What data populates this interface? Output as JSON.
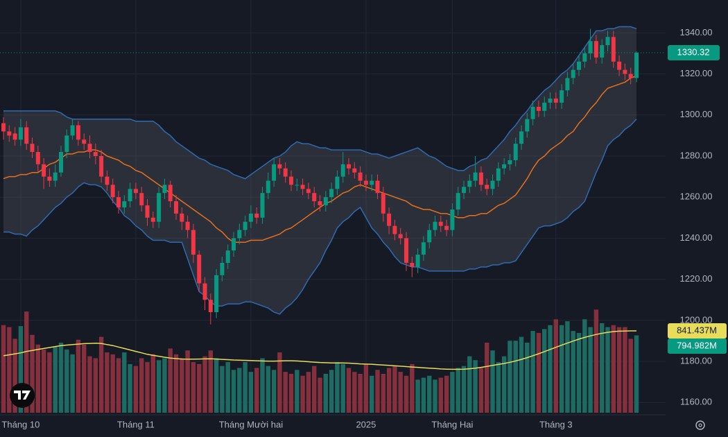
{
  "chart_data": {
    "type": "candlestick",
    "categories": [
      null,
      null,
      null,
      "Tháng 10",
      null,
      null,
      null,
      null,
      null,
      null,
      null,
      null,
      null,
      null,
      null,
      null,
      null,
      null,
      null,
      null,
      null,
      null,
      null,
      "Tháng 11",
      null,
      null,
      null,
      null,
      null,
      null,
      null,
      null,
      null,
      null,
      null,
      null,
      null,
      null,
      null,
      null,
      null,
      null,
      null,
      "Tháng Mười hai",
      null,
      null,
      null,
      null,
      null,
      null,
      null,
      null,
      null,
      null,
      null,
      null,
      null,
      null,
      null,
      null,
      null,
      null,
      null,
      "2025",
      null,
      null,
      null,
      null,
      null,
      null,
      null,
      null,
      null,
      null,
      null,
      null,
      null,
      null,
      "Tháng Hai",
      null,
      null,
      null,
      null,
      null,
      null,
      null,
      null,
      null,
      null,
      null,
      null,
      null,
      null,
      null,
      null,
      null,
      "Tháng 3",
      null,
      null,
      null,
      null,
      null,
      null,
      null,
      null,
      null,
      null,
      null,
      null,
      null,
      null
    ],
    "open": [
      1296,
      1292,
      1291,
      1288,
      1294,
      1286,
      1282,
      1276,
      1270,
      1268,
      1272,
      1282,
      1290,
      1295,
      1288,
      1286,
      1282,
      1280,
      1270,
      1266,
      1260,
      1255,
      1258,
      1264,
      1262,
      1256,
      1250,
      1248,
      1262,
      1266,
      1258,
      1252,
      1248,
      1244,
      1232,
      1218,
      1210,
      1204,
      1222,
      1228,
      1234,
      1240,
      1244,
      1248,
      1252,
      1250,
      1262,
      1268,
      1276,
      1274,
      1270,
      1266,
      1266,
      1264,
      1262,
      1258,
      1256,
      1260,
      1264,
      1270,
      1276,
      1274,
      1272,
      1268,
      1266,
      1268,
      1262,
      1252,
      1246,
      1242,
      1240,
      1228,
      1226,
      1232,
      1238,
      1244,
      1248,
      1246,
      1244,
      1254,
      1262,
      1265,
      1268,
      1272,
      1266,
      1264,
      1268,
      1274,
      1276,
      1278,
      1286,
      1292,
      1298,
      1304,
      1302,
      1306,
      1308,
      1306,
      1312,
      1318,
      1322,
      1326,
      1330,
      1336,
      1328,
      1334,
      1338,
      1326,
      1322,
      1320,
      1318
    ],
    "high": [
      1299,
      1295,
      1294,
      1298,
      1297,
      1289,
      1285,
      1279,
      1274,
      1276,
      1285,
      1293,
      1298,
      1297,
      1291,
      1290,
      1286,
      1283,
      1273,
      1269,
      1263,
      1261,
      1267,
      1267,
      1265,
      1259,
      1253,
      1265,
      1269,
      1268,
      1261,
      1255,
      1251,
      1247,
      1234,
      1221,
      1213,
      1225,
      1231,
      1237,
      1243,
      1247,
      1251,
      1256,
      1255,
      1265,
      1272,
      1279,
      1279,
      1277,
      1273,
      1269,
      1269,
      1267,
      1265,
      1261,
      1263,
      1267,
      1273,
      1282,
      1279,
      1277,
      1275,
      1271,
      1271,
      1271,
      1265,
      1255,
      1249,
      1245,
      1243,
      1231,
      1235,
      1241,
      1247,
      1251,
      1251,
      1249,
      1257,
      1265,
      1268,
      1271,
      1280,
      1275,
      1269,
      1271,
      1277,
      1279,
      1281,
      1289,
      1295,
      1301,
      1307,
      1307,
      1309,
      1311,
      1311,
      1315,
      1321,
      1325,
      1329,
      1333,
      1342,
      1339,
      1337,
      1341,
      1341,
      1329,
      1325,
      1323,
      1331
    ],
    "low": [
      1288,
      1287,
      1285,
      1285,
      1283,
      1279,
      1272,
      1264,
      1265,
      1265,
      1270,
      1279,
      1288,
      1285,
      1283,
      1279,
      1276,
      1267,
      1263,
      1257,
      1252,
      1252,
      1255,
      1259,
      1253,
      1246,
      1245,
      1245,
      1259,
      1255,
      1249,
      1244,
      1240,
      1228,
      1214,
      1205,
      1198,
      1201,
      1219,
      1225,
      1231,
      1237,
      1241,
      1245,
      1247,
      1247,
      1259,
      1265,
      1271,
      1267,
      1263,
      1263,
      1261,
      1259,
      1255,
      1253,
      1253,
      1257,
      1261,
      1267,
      1271,
      1269,
      1265,
      1263,
      1263,
      1259,
      1248,
      1242,
      1239,
      1237,
      1224,
      1221,
      1223,
      1229,
      1235,
      1241,
      1243,
      1241,
      1241,
      1251,
      1259,
      1262,
      1265,
      1263,
      1261,
      1261,
      1265,
      1271,
      1273,
      1275,
      1283,
      1289,
      1295,
      1299,
      1299,
      1303,
      1303,
      1303,
      1309,
      1315,
      1319,
      1323,
      1327,
      1325,
      1325,
      1331,
      1323,
      1319,
      1317,
      1315,
      1316
    ],
    "close": [
      1292,
      1290,
      1288,
      1294,
      1286,
      1282,
      1276,
      1270,
      1268,
      1272,
      1282,
      1290,
      1295,
      1288,
      1286,
      1282,
      1280,
      1270,
      1266,
      1260,
      1255,
      1258,
      1264,
      1262,
      1256,
      1250,
      1248,
      1262,
      1266,
      1258,
      1252,
      1248,
      1244,
      1232,
      1218,
      1210,
      1204,
      1222,
      1228,
      1234,
      1240,
      1244,
      1248,
      1252,
      1250,
      1262,
      1268,
      1276,
      1274,
      1270,
      1266,
      1266,
      1264,
      1262,
      1258,
      1256,
      1260,
      1264,
      1270,
      1276,
      1274,
      1272,
      1268,
      1266,
      1268,
      1262,
      1252,
      1246,
      1242,
      1240,
      1228,
      1226,
      1232,
      1238,
      1244,
      1248,
      1246,
      1244,
      1254,
      1262,
      1265,
      1268,
      1272,
      1266,
      1264,
      1268,
      1274,
      1276,
      1278,
      1286,
      1292,
      1298,
      1304,
      1302,
      1306,
      1308,
      1306,
      1312,
      1318,
      1322,
      1326,
      1330,
      1336,
      1328,
      1334,
      1338,
      1326,
      1322,
      1320,
      1318,
      1330.32
    ],
    "up_color": "#089981",
    "down_color": "#f23645",
    "ylim": [
      1154,
      1356
    ],
    "yticks": [
      {
        "value": 1340,
        "label": "1340.00"
      },
      {
        "value": 1320,
        "label": "1320.00"
      },
      {
        "value": 1300,
        "label": "1300.00"
      },
      {
        "value": 1280,
        "label": "1280.00"
      },
      {
        "value": 1260,
        "label": "1260.00"
      },
      {
        "value": 1240,
        "label": "1240.00"
      },
      {
        "value": 1220,
        "label": "1220.00"
      },
      {
        "value": 1200,
        "label": "1200.00"
      },
      {
        "value": 1180,
        "label": "1180.00"
      },
      {
        "value": 1160,
        "label": "1160.00"
      }
    ],
    "grid": true,
    "bands": {
      "upper": [
        1302,
        1302,
        1302,
        1302,
        1302,
        1302,
        1302,
        1302,
        1302,
        1302,
        1301,
        1299,
        1298,
        1298,
        1298,
        1298,
        1298,
        1298,
        1298,
        1298,
        1298,
        1298,
        1298,
        1297,
        1297,
        1297,
        1297,
        1295,
        1292,
        1290,
        1287,
        1285,
        1283,
        1281,
        1279,
        1278,
        1276,
        1275,
        1274,
        1273,
        1271,
        1270,
        1269,
        1271,
        1273,
        1275,
        1277,
        1279,
        1280,
        1282,
        1285,
        1287,
        1286,
        1286,
        1285,
        1284,
        1284,
        1283,
        1283,
        1283,
        1283,
        1283,
        1283,
        1282,
        1281,
        1281,
        1280,
        1279,
        1280,
        1281,
        1282,
        1283,
        1284,
        1282,
        1280,
        1279,
        1277,
        1275,
        1274,
        1273,
        1273,
        1275,
        1276,
        1278,
        1279,
        1282,
        1285,
        1288,
        1292,
        1295,
        1299,
        1302,
        1306,
        1309,
        1312,
        1314,
        1317,
        1320,
        1322,
        1325,
        1329,
        1333,
        1337,
        1341,
        1341,
        1342,
        1342,
        1343,
        1343,
        1343,
        1342
      ],
      "lower": [
        1243,
        1243,
        1242,
        1242,
        1241,
        1244,
        1246,
        1249,
        1252,
        1255,
        1257,
        1260,
        1262,
        1265,
        1267,
        1266,
        1266,
        1265,
        1262,
        1258,
        1255,
        1251,
        1249,
        1246,
        1244,
        1241,
        1239,
        1239,
        1239,
        1238,
        1238,
        1238,
        1230,
        1222,
        1214,
        1212,
        1209,
        1207,
        1207,
        1208,
        1208,
        1208,
        1209,
        1209,
        1208,
        1207,
        1206,
        1204,
        1203,
        1206,
        1208,
        1211,
        1215,
        1220,
        1224,
        1228,
        1234,
        1239,
        1245,
        1248,
        1250,
        1253,
        1255,
        1250,
        1245,
        1242,
        1238,
        1235,
        1231,
        1228,
        1227,
        1226,
        1226,
        1225,
        1224,
        1224,
        1224,
        1224,
        1224,
        1224,
        1224,
        1225,
        1225,
        1226,
        1226,
        1227,
        1227,
        1228,
        1228,
        1229,
        1233,
        1237,
        1241,
        1245,
        1246,
        1246,
        1247,
        1248,
        1250,
        1253,
        1255,
        1258,
        1265,
        1272,
        1278,
        1285,
        1288,
        1290,
        1293,
        1295,
        1298
      ],
      "basis": [
        1269,
        1270,
        1270,
        1271,
        1271,
        1272,
        1272,
        1274,
        1276,
        1277,
        1279,
        1281,
        1281,
        1282,
        1282,
        1283,
        1283,
        1282,
        1280,
        1279,
        1278,
        1276,
        1275,
        1273,
        1272,
        1270,
        1268,
        1266,
        1264,
        1262,
        1260,
        1258,
        1256,
        1254,
        1252,
        1250,
        1248,
        1245,
        1243,
        1240,
        1238,
        1238,
        1238,
        1239,
        1239,
        1239,
        1240,
        1241,
        1242,
        1244,
        1245,
        1247,
        1249,
        1251,
        1253,
        1255,
        1257,
        1258,
        1260,
        1262,
        1263,
        1265,
        1266,
        1265,
        1264,
        1263,
        1262,
        1261,
        1260,
        1259,
        1258,
        1256,
        1255,
        1254,
        1254,
        1253,
        1252,
        1252,
        1251,
        1250,
        1250,
        1251,
        1251,
        1252,
        1252,
        1254,
        1256,
        1257,
        1259,
        1261,
        1265,
        1269,
        1274,
        1278,
        1280,
        1283,
        1285,
        1287,
        1290,
        1292,
        1296,
        1299,
        1303,
        1306,
        1310,
        1313,
        1314,
        1315,
        1316,
        1318,
        1319
      ],
      "band_color": "#2f6bb3",
      "fill_color": "rgba(120,123,134,0.22)",
      "basis_color": "#e8701a"
    },
    "volume": {
      "values": [
        900,
        880,
        760,
        890,
        1040,
        800,
        700,
        650,
        620,
        680,
        720,
        650,
        600,
        750,
        700,
        580,
        560,
        780,
        620,
        600,
        560,
        620,
        500,
        480,
        560,
        520,
        600,
        540,
        560,
        660,
        600,
        560,
        640,
        520,
        500,
        580,
        640,
        560,
        480,
        520,
        440,
        460,
        520,
        420,
        460,
        560,
        480,
        440,
        620,
        420,
        400,
        440,
        380,
        420,
        480,
        360,
        400,
        440,
        520,
        500,
        460,
        420,
        400,
        500,
        380,
        440,
        400,
        460,
        480,
        420,
        380,
        500,
        340,
        360,
        380,
        340,
        360,
        380,
        420,
        460,
        480,
        580,
        540,
        460,
        720,
        640,
        520,
        580,
        740,
        740,
        780,
        720,
        840,
        820,
        860,
        900,
        960,
        900,
        940,
        840,
        820,
        960,
        880,
        1060,
        920,
        880,
        900,
        880,
        880,
        760,
        794.982
      ],
      "ma": [
        585,
        595,
        605,
        615,
        630,
        640,
        650,
        660,
        670,
        680,
        690,
        695,
        700,
        705,
        710,
        712,
        714,
        712,
        700,
        690,
        675,
        660,
        645,
        630,
        615,
        600,
        590,
        580,
        570,
        562,
        556,
        552,
        550,
        550,
        552,
        553,
        554,
        552,
        548,
        545,
        542,
        540,
        538,
        536,
        534,
        532,
        530,
        530,
        532,
        534,
        534,
        532,
        528,
        524,
        520,
        516,
        514,
        512,
        512,
        512,
        510,
        506,
        502,
        500,
        498,
        494,
        490,
        486,
        482,
        478,
        474,
        470,
        466,
        462,
        458,
        454,
        450,
        448,
        446,
        446,
        448,
        452,
        458,
        466,
        476,
        486,
        496,
        506,
        518,
        532,
        548,
        566,
        586,
        606,
        628,
        650,
        672,
        694,
        716,
        736,
        756,
        774,
        790,
        804,
        816,
        826,
        834,
        838,
        840,
        841,
        841.437
      ],
      "last_label": "794.982M",
      "ma_last_label": "841.437M",
      "ylim": [
        0,
        1390
      ],
      "up_color": "#1d6b62",
      "down_color": "#86303e",
      "ma_color": "#e8dd5a"
    }
  }
}
